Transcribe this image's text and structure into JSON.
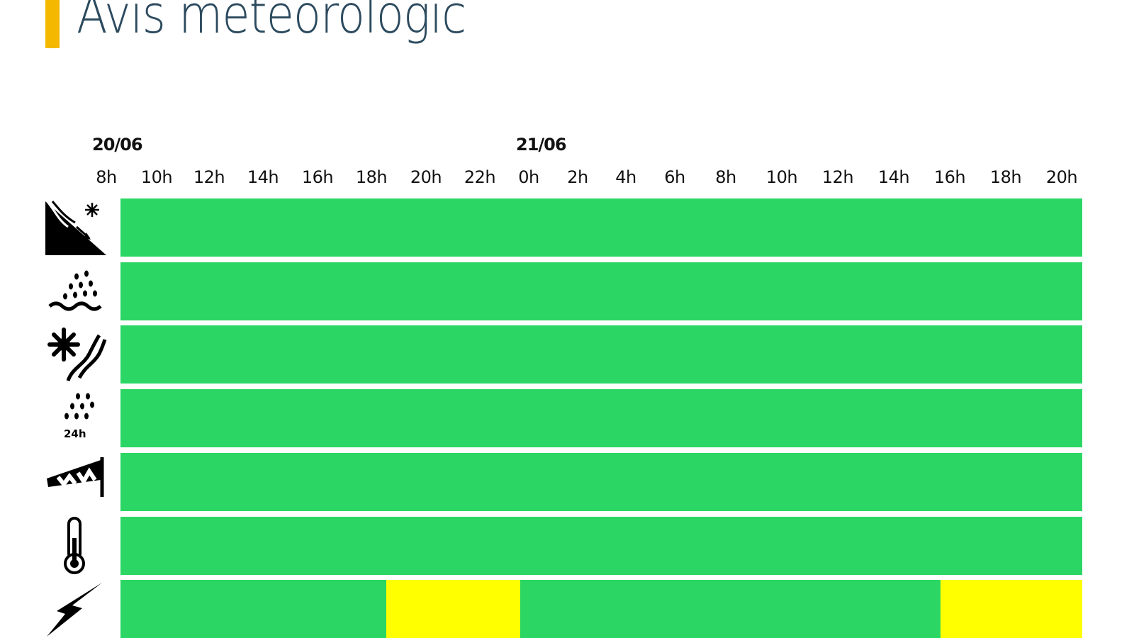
{
  "title": "Avis meteorologic",
  "colors": {
    "accent_bar": "#f5b800",
    "green": "#2bd664",
    "yellow": "#ffff00",
    "title_text": "#2c4a5e"
  },
  "dates": [
    "20/06",
    "21/06"
  ],
  "hours": [
    "8h",
    "10h",
    "12h",
    "14h",
    "16h",
    "18h",
    "20h",
    "22h",
    "0h",
    "2h",
    "4h",
    "6h",
    "8h",
    "10h",
    "12h",
    "14h",
    "16h",
    "18h",
    "20h"
  ],
  "timeline": {
    "start_hour_offset": 0,
    "span_hours": 38
  },
  "rows": [
    {
      "icon": "avalanche-icon",
      "segments": [
        {
          "from": 0,
          "to": 38,
          "level": "green"
        }
      ]
    },
    {
      "icon": "flood-rain-icon",
      "segments": [
        {
          "from": 0,
          "to": 38,
          "level": "green"
        }
      ]
    },
    {
      "icon": "snow-wind-icon",
      "segments": [
        {
          "from": 0,
          "to": 38,
          "level": "green"
        }
      ]
    },
    {
      "icon": "rain-24h-icon",
      "icon_text": "24h",
      "segments": [
        {
          "from": 0,
          "to": 38,
          "level": "green"
        }
      ]
    },
    {
      "icon": "windsock-icon",
      "segments": [
        {
          "from": 0,
          "to": 38,
          "level": "green"
        }
      ]
    },
    {
      "icon": "thermometer-icon",
      "segments": [
        {
          "from": 0,
          "to": 38,
          "level": "green"
        }
      ]
    },
    {
      "icon": "lightning-icon",
      "segments": [
        {
          "from": 0,
          "to": 10.5,
          "level": "green"
        },
        {
          "from": 10.5,
          "to": 15.8,
          "level": "yellow"
        },
        {
          "from": 15.8,
          "to": 32.4,
          "level": "green"
        },
        {
          "from": 32.4,
          "to": 38,
          "level": "yellow"
        }
      ]
    }
  ]
}
